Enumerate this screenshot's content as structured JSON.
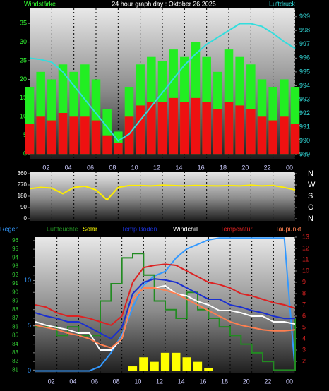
{
  "chart_data": [
    {
      "type": "combo",
      "title": "24 hour graph day : Oktober 26 2025",
      "ylabel": "Windstärke",
      "y2label": "Luftdruck",
      "xlim": [
        0,
        24
      ],
      "xticks": [
        {
          "value": 2,
          "label": "02"
        },
        {
          "value": 4,
          "label": "04"
        },
        {
          "value": 6,
          "label": "06"
        },
        {
          "value": 8,
          "label": "08"
        },
        10,
        12,
        14,
        16,
        18,
        20,
        22,
        {
          "value": 24,
          "label": "00"
        }
      ],
      "ylim": [
        -1.3,
        39
      ],
      "yticks": [
        0,
        5,
        10,
        15,
        20,
        25,
        30,
        35
      ],
      "y2lim": [
        988.7,
        999.6
      ],
      "y2ticks": [
        989,
        990,
        991,
        992,
        993,
        994,
        995,
        996,
        997,
        998,
        999
      ],
      "x": [
        0,
        1,
        2,
        3,
        4,
        5,
        6,
        7,
        8,
        9,
        10,
        11,
        12,
        13,
        14,
        15,
        16,
        17,
        18,
        19,
        20,
        21,
        22,
        23,
        24
      ],
      "series": [
        {
          "type": "bar",
          "color": "#22ee22",
          "values": [
            18,
            22,
            20,
            24,
            22,
            24,
            20,
            12,
            6,
            18,
            24,
            26,
            25,
            28,
            26,
            30,
            26,
            22,
            28,
            26,
            24,
            20,
            18,
            20,
            18
          ]
        },
        {
          "type": "bar",
          "color": "#ee1111",
          "values": [
            8,
            10,
            9,
            11,
            10,
            10,
            9,
            5,
            3,
            10,
            13,
            14,
            14,
            15,
            14,
            15,
            14,
            12,
            14,
            13,
            12,
            10,
            9,
            10,
            8
          ]
        },
        {
          "type": "line",
          "axis": "y2",
          "color": "#33dddd",
          "values": [
            996,
            995.9,
            995.7,
            995,
            994,
            993,
            992,
            991,
            990,
            990.5,
            991.5,
            992.5,
            993.5,
            994.5,
            995.5,
            996.3,
            997,
            997.5,
            998,
            998.5,
            998.5,
            998.3,
            997.8,
            997.2,
            996.7
          ]
        }
      ]
    },
    {
      "type": "combo",
      "xlim": [
        0,
        24
      ],
      "xticks": [
        {
          "value": 2,
          "label": "02"
        },
        {
          "value": 4,
          "label": "04"
        },
        {
          "value": 6,
          "label": "06"
        },
        {
          "value": 8,
          "label": "08"
        },
        10,
        12,
        14,
        16,
        18,
        20,
        22,
        {
          "value": 24,
          "label": "00"
        }
      ],
      "ylim": [
        -17,
        377
      ],
      "yticks": [
        360,
        270,
        180,
        90,
        0
      ],
      "y2lim": [
        -17,
        377
      ],
      "y2ticks": [
        {
          "value": 360,
          "label": "N"
        },
        {
          "value": 270,
          "label": "W"
        },
        {
          "value": 180,
          "label": "S"
        },
        {
          "value": 90,
          "label": "O"
        },
        {
          "value": 0,
          "label": "N"
        }
      ],
      "x": [
        0,
        1,
        2,
        3,
        4,
        5,
        6,
        7,
        8,
        9,
        10,
        11,
        12,
        13,
        14,
        15,
        16,
        17,
        18,
        19,
        20,
        21,
        22,
        23,
        24
      ],
      "series": [
        {
          "type": "line",
          "color": "#ffee00",
          "values": [
            240,
            250,
            245,
            200,
            250,
            260,
            230,
            150,
            250,
            265,
            265,
            262,
            268,
            265,
            262,
            266,
            264,
            262,
            265,
            262,
            268,
            262,
            266,
            250,
            230
          ]
        }
      ]
    },
    {
      "type": "combo",
      "xlim": [
        0,
        24
      ],
      "xticks": [
        {
          "value": 2,
          "label": "02"
        },
        {
          "value": 4,
          "label": "04"
        },
        {
          "value": 6,
          "label": "06"
        },
        {
          "value": 8,
          "label": "08"
        },
        10,
        12,
        14,
        16,
        18,
        20,
        22,
        {
          "value": 24,
          "label": "00"
        }
      ],
      "ylim": [
        80.7,
        96.4
      ],
      "yticks": [
        81,
        82,
        83,
        84,
        85,
        86,
        87,
        88,
        89,
        90,
        91,
        92,
        93,
        94,
        95,
        96
      ],
      "y2lim": [
        1,
        13
      ],
      "y2ticks": [
        2,
        3,
        4,
        5,
        6,
        7,
        8,
        9,
        10,
        11,
        12,
        13
      ],
      "y3lim": [
        -0.2,
        14.8
      ],
      "y3ticks": [
        0,
        5,
        10
      ],
      "x": [
        0,
        1,
        2,
        3,
        4,
        5,
        6,
        7,
        8,
        9,
        10,
        11,
        12,
        13,
        14,
        15,
        16,
        17,
        18,
        19,
        20,
        21,
        22,
        23,
        24
      ],
      "series": [
        {
          "name": "Regen",
          "type": "line",
          "axis": "y3",
          "color": "#3399ff",
          "values": [
            0,
            0,
            0,
            0,
            0,
            0,
            0.5,
            2,
            4,
            7,
            9.5,
            10.5,
            11,
            12.5,
            13.5,
            14,
            14.5,
            14.7,
            14.7,
            14.7,
            14.7,
            14.7,
            14.7,
            14.7,
            0
          ]
        },
        {
          "name": "Luftfeuchte",
          "type": "step",
          "axis": "y",
          "color": "#228b22",
          "values": [
            86,
            86,
            85,
            86,
            85,
            85,
            89,
            91,
            94,
            94.5,
            92,
            89,
            88,
            87,
            90,
            88,
            87,
            86,
            85,
            84,
            83,
            82,
            81,
            81,
            87
          ]
        },
        {
          "name": "Solar",
          "type": "bar",
          "axis": "y3",
          "color": "#ffff00",
          "values": [
            0,
            0,
            0,
            0,
            0,
            0,
            0,
            0,
            0,
            0.5,
            1.5,
            1,
            2,
            2,
            1.5,
            1,
            0.3,
            0,
            0,
            0,
            0,
            0,
            0,
            0,
            0
          ]
        },
        {
          "name": "Temp Boden",
          "type": "line",
          "axis": "y2",
          "color": "#1a2fd0",
          "values": [
            6.3,
            6,
            5.8,
            5.5,
            5.5,
            5,
            4.5,
            4,
            5,
            8,
            9,
            9.3,
            9.2,
            9,
            8.5,
            8,
            7.5,
            7.5,
            7,
            6.8,
            6.5,
            6.3,
            6,
            5.8,
            5.8
          ]
        },
        {
          "name": "Windchill",
          "type": "line",
          "axis": "y2",
          "color": "#ffffff",
          "values": [
            5.5,
            5.2,
            5,
            4.8,
            4.5,
            4.5,
            3,
            3,
            4,
            7.5,
            8.5,
            8.5,
            8.7,
            8,
            7.8,
            7.3,
            7,
            6.5,
            6.5,
            6.3,
            6,
            6,
            5.5,
            5.5,
            5.3
          ]
        },
        {
          "name": "Temperatur",
          "type": "line",
          "axis": "y2",
          "color": "#dd2222",
          "values": [
            7,
            6.8,
            6.3,
            6,
            6,
            5.8,
            5.5,
            5.2,
            6,
            9,
            10.3,
            10.5,
            10.6,
            10.5,
            10,
            9.5,
            9,
            8.8,
            8.5,
            8,
            7.8,
            7.5,
            7.2,
            7,
            6.7
          ]
        },
        {
          "name": "Taupunkt",
          "type": "line",
          "axis": "y2",
          "color": "#ff7f50",
          "values": [
            5.2,
            5,
            4.8,
            4.5,
            4.3,
            4,
            3.5,
            3.2,
            4,
            7.5,
            8.5,
            8.5,
            8.3,
            8,
            7.5,
            7,
            6.5,
            6,
            5.5,
            5.2,
            5,
            4.8,
            4.7,
            4.7,
            4.8
          ]
        }
      ]
    }
  ]
}
